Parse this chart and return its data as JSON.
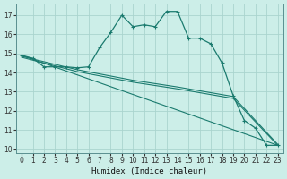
{
  "xlabel": "Humidex (Indice chaleur)",
  "background_color": "#cceee8",
  "grid_color": "#aad4ce",
  "line_color": "#1a7a6e",
  "xlim": [
    -0.5,
    23.5
  ],
  "ylim": [
    9.8,
    17.6
  ],
  "yticks": [
    10,
    11,
    12,
    13,
    14,
    15,
    16,
    17
  ],
  "xticks": [
    0,
    1,
    2,
    3,
    4,
    5,
    6,
    7,
    8,
    9,
    10,
    11,
    12,
    13,
    14,
    15,
    16,
    17,
    18,
    19,
    20,
    21,
    22,
    23
  ],
  "series1_x": [
    0,
    1,
    2,
    3,
    4,
    5,
    6,
    7,
    8,
    9,
    10,
    11,
    12,
    13,
    14,
    15,
    16,
    17,
    18,
    19,
    20,
    21,
    22,
    23
  ],
  "series1_y": [
    14.9,
    14.75,
    14.3,
    14.3,
    14.3,
    14.25,
    14.3,
    15.3,
    16.1,
    17.0,
    16.4,
    16.5,
    16.4,
    17.2,
    17.2,
    15.8,
    15.8,
    15.5,
    14.5,
    12.8,
    11.5,
    11.1,
    10.2,
    10.2
  ],
  "line2_x": [
    0,
    23
  ],
  "line2_y": [
    14.9,
    10.2
  ],
  "line3_x": [
    0,
    5,
    10,
    14,
    19,
    23
  ],
  "line3_y": [
    14.85,
    14.15,
    13.6,
    13.25,
    12.75,
    10.25
  ],
  "line4_x": [
    0,
    5,
    10,
    14,
    19,
    23
  ],
  "line4_y": [
    14.8,
    14.05,
    13.5,
    13.15,
    12.65,
    10.2
  ]
}
